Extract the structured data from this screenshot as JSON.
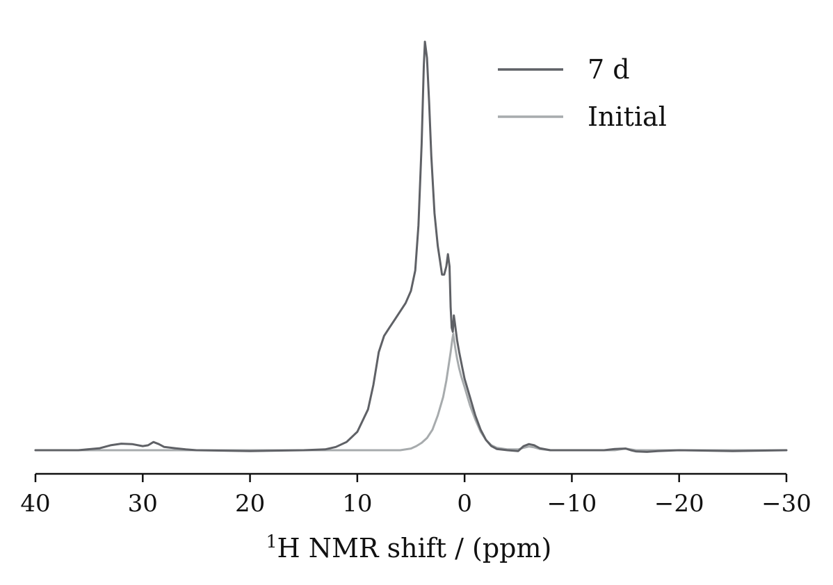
{
  "chart_data": {
    "type": "line",
    "title": "",
    "xlabel": "1H NMR shift / (ppm)",
    "xlabel_parts": {
      "sup": "1",
      "main": "H NMR shift / (ppm)"
    },
    "ylabel": "",
    "xlim": [
      40,
      -30
    ],
    "x_reversed": true,
    "y_axis_shown": false,
    "grid": false,
    "legend_position": "top-right",
    "x_ticks": [
      40,
      30,
      20,
      10,
      0,
      -10,
      -20,
      -30
    ],
    "x_tick_labels": [
      "40",
      "30",
      "20",
      "10",
      "0",
      "−10",
      "−20",
      "−30"
    ],
    "y_units": "relative intensity (baseline = 0, max = 1)",
    "series": [
      {
        "name": "7 d",
        "color": "#5f6166",
        "points": [
          [
            40,
            0.0
          ],
          [
            36,
            0.0
          ],
          [
            34,
            0.005
          ],
          [
            33,
            0.012
          ],
          [
            32,
            0.016
          ],
          [
            31,
            0.015
          ],
          [
            30,
            0.01
          ],
          [
            29.5,
            0.012
          ],
          [
            29,
            0.02
          ],
          [
            28.5,
            0.015
          ],
          [
            28,
            0.008
          ],
          [
            27,
            0.005
          ],
          [
            26,
            0.002
          ],
          [
            25,
            0.0
          ],
          [
            20,
            -0.002
          ],
          [
            15,
            0.0
          ],
          [
            13,
            0.002
          ],
          [
            12,
            0.008
          ],
          [
            11,
            0.02
          ],
          [
            10,
            0.045
          ],
          [
            9,
            0.1
          ],
          [
            8.5,
            0.16
          ],
          [
            8,
            0.24
          ],
          [
            7.5,
            0.28
          ],
          [
            7,
            0.3
          ],
          [
            6.5,
            0.32
          ],
          [
            6,
            0.34
          ],
          [
            5.5,
            0.36
          ],
          [
            5,
            0.39
          ],
          [
            4.6,
            0.44
          ],
          [
            4.3,
            0.55
          ],
          [
            4.0,
            0.75
          ],
          [
            3.8,
            0.94
          ],
          [
            3.7,
            1.0
          ],
          [
            3.5,
            0.96
          ],
          [
            3.3,
            0.85
          ],
          [
            3.1,
            0.72
          ],
          [
            2.8,
            0.58
          ],
          [
            2.5,
            0.5
          ],
          [
            2.3,
            0.465
          ],
          [
            2.1,
            0.43
          ],
          [
            1.9,
            0.43
          ],
          [
            1.7,
            0.45
          ],
          [
            1.55,
            0.48
          ],
          [
            1.4,
            0.45
          ],
          [
            1.3,
            0.35
          ],
          [
            1.2,
            0.3
          ],
          [
            1.1,
            0.29
          ],
          [
            1.0,
            0.33
          ],
          [
            0.9,
            0.31
          ],
          [
            0.7,
            0.27
          ],
          [
            0.5,
            0.24
          ],
          [
            0.2,
            0.2
          ],
          [
            0,
            0.175
          ],
          [
            -0.5,
            0.13
          ],
          [
            -1,
            0.085
          ],
          [
            -1.5,
            0.05
          ],
          [
            -2,
            0.025
          ],
          [
            -2.5,
            0.01
          ],
          [
            -3,
            0.003
          ],
          [
            -4,
            0.0
          ],
          [
            -5,
            -0.002
          ],
          [
            -5.5,
            0.01
          ],
          [
            -6,
            0.015
          ],
          [
            -6.5,
            0.012
          ],
          [
            -7,
            0.005
          ],
          [
            -8,
            0.0
          ],
          [
            -13,
            0.0
          ],
          [
            -14,
            0.003
          ],
          [
            -15,
            0.004
          ],
          [
            -15.5,
            0.0
          ],
          [
            -16,
            -0.003
          ],
          [
            -17,
            -0.004
          ],
          [
            -18,
            -0.002
          ],
          [
            -20,
            0.0
          ],
          [
            -25,
            -0.002
          ],
          [
            -30,
            0.0
          ]
        ]
      },
      {
        "name": "Initial",
        "color": "#a7abad",
        "points": [
          [
            40,
            0.0
          ],
          [
            30,
            0.0
          ],
          [
            20,
            0.0
          ],
          [
            10,
            0.0
          ],
          [
            6,
            0.0
          ],
          [
            5,
            0.004
          ],
          [
            4.5,
            0.01
          ],
          [
            4,
            0.018
          ],
          [
            3.5,
            0.03
          ],
          [
            3,
            0.05
          ],
          [
            2.5,
            0.085
          ],
          [
            2,
            0.13
          ],
          [
            1.7,
            0.17
          ],
          [
            1.5,
            0.205
          ],
          [
            1.3,
            0.24
          ],
          [
            1.15,
            0.27
          ],
          [
            1.05,
            0.285
          ],
          [
            1.0,
            0.275
          ],
          [
            0.9,
            0.255
          ],
          [
            0.7,
            0.225
          ],
          [
            0.5,
            0.2
          ],
          [
            0.3,
            0.18
          ],
          [
            0,
            0.155
          ],
          [
            -0.5,
            0.11
          ],
          [
            -1,
            0.075
          ],
          [
            -1.5,
            0.045
          ],
          [
            -2,
            0.025
          ],
          [
            -2.5,
            0.012
          ],
          [
            -3,
            0.006
          ],
          [
            -4,
            0.002
          ],
          [
            -5,
            0.002
          ],
          [
            -5.5,
            0.006
          ],
          [
            -6,
            0.009
          ],
          [
            -6.5,
            0.007
          ],
          [
            -7,
            0.003
          ],
          [
            -8,
            0.0
          ],
          [
            -14,
            0.0
          ],
          [
            -15,
            0.004
          ],
          [
            -15.5,
            0.002
          ],
          [
            -16,
            0.0
          ],
          [
            -20,
            0.0
          ],
          [
            -30,
            0.0
          ]
        ]
      }
    ]
  }
}
